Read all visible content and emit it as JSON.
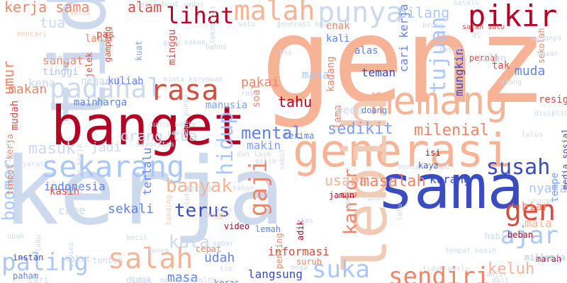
{
  "colors": {
    "background": "#ffffff",
    "deep_red": "#b40426",
    "red": "#d44e41",
    "salmon": "#ee8468",
    "peach": "#f7b396",
    "light_peach": "#f2cbb7",
    "grey_blue": "#cdd9ec",
    "light_blue": "#aac7fd",
    "blue": "#7b9ff9",
    "mid_blue": "#6282ea",
    "royal_blue": "#3b4cc0"
  },
  "words": [
    {
      "text": "genz",
      "color": "#f7b396"
    },
    {
      "text": "kerja",
      "color": "#cdd9ec"
    },
    {
      "text": "tidak",
      "color": "#cdd9ec"
    },
    {
      "text": "banget",
      "color": "#b40426"
    },
    {
      "text": "generasi",
      "color": "#f7b396"
    },
    {
      "text": "sama",
      "color": "#3b4cc0"
    },
    {
      "text": "memang",
      "color": "#f7b396"
    },
    {
      "text": "lebih",
      "color": "#f2cbb7"
    },
    {
      "text": "sekarang",
      "color": "#aac7fd"
    },
    {
      "text": "padahal",
      "color": "#cdd9ec"
    },
    {
      "text": "salah",
      "color": "#f7b396"
    },
    {
      "text": "rasa",
      "color": "#d44e41"
    },
    {
      "text": "pikir",
      "color": "#b40426"
    },
    {
      "text": "punya",
      "color": "#cdd9ec"
    },
    {
      "text": "malah",
      "color": "#f7b396"
    },
    {
      "text": "paling",
      "color": "#aac7fd"
    },
    {
      "text": "suka",
      "color": "#aac7fd"
    },
    {
      "text": "sendiri",
      "color": "#ee8468"
    },
    {
      "text": "banyak",
      "color": "#f7b396"
    },
    {
      "text": "hidup",
      "color": "#aac7fd"
    },
    {
      "text": "gaji",
      "color": "#ee8468"
    },
    {
      "text": "gen",
      "color": "#d44e41"
    },
    {
      "text": "lihat",
      "color": "#b40426"
    },
    {
      "text": "mental",
      "color": "#6282ea"
    },
    {
      "text": "masuk",
      "color": "#cdd9ec"
    },
    {
      "text": "terus",
      "color": "#3b4cc0"
    },
    {
      "text": "milenial",
      "color": "#ee8468"
    },
    {
      "text": "sedikit",
      "color": "#7b9ff9"
    },
    {
      "text": "susah",
      "color": "#3b4cc0"
    },
    {
      "text": "ajar",
      "color": "#aac7fd"
    },
    {
      "text": "kantor",
      "color": "#ee8468"
    },
    {
      "text": "usaha",
      "color": "#f7b396"
    },
    {
      "text": "masalah",
      "color": "#ee8468"
    },
    {
      "text": "tujuan",
      "color": "#aac7fd"
    },
    {
      "text": "bilang",
      "color": "#aac7fd"
    },
    {
      "text": "umur",
      "color": "#ee8468"
    },
    {
      "text": "boomer",
      "color": "#aac7fd"
    },
    {
      "text": "kerja sama",
      "color": "#ee8468"
    },
    {
      "text": "tua",
      "color": "#cdd9ec"
    },
    {
      "text": "alam",
      "color": "#d44e41"
    },
    {
      "text": "jadi",
      "color": "#cdd9ec"
    },
    {
      "text": "muda",
      "color": "#6282ea"
    },
    {
      "text": "tahu",
      "color": "#b40426"
    },
    {
      "text": "indonesia",
      "color": "#6282ea"
    },
    {
      "text": "sekali",
      "color": "#6282ea"
    },
    {
      "text": "langsung",
      "color": "#3b4cc0"
    },
    {
      "text": "kata",
      "color": "#cdd9ec"
    },
    {
      "text": "makan",
      "color": "#ee8468"
    },
    {
      "text": "orang tua",
      "color": "#cdd9ec"
    },
    {
      "text": "keluh",
      "color": "#f7b396"
    },
    {
      "text": "teman",
      "color": "#3b4cc0"
    },
    {
      "text": "pakai",
      "color": "#ee8468"
    },
    {
      "text": "informasi",
      "color": "#d44e41"
    },
    {
      "text": "udah",
      "color": "#6282ea"
    },
    {
      "text": "masa",
      "color": "#6282ea"
    },
    {
      "text": "cape",
      "color": "#cdd9ec"
    },
    {
      "text": "terlalu",
      "color": "#6282ea"
    },
    {
      "text": "nyata",
      "color": "#aac7fd"
    },
    {
      "text": "sangat",
      "color": "#ee8468"
    },
    {
      "text": "kurang",
      "color": "#3b4cc0"
    },
    {
      "text": "mungkin",
      "color": "#3b4cc0"
    },
    {
      "text": "cari kerja",
      "color": "#6282ea"
    },
    {
      "text": "biar",
      "color": "#ee8468"
    },
    {
      "text": "mana",
      "color": "#aac7fd"
    },
    {
      "text": "lama",
      "color": "#ee8468"
    },
    {
      "text": "kadang",
      "color": "#ee8468"
    },
    {
      "text": "makin",
      "color": "#7b9ff9"
    },
    {
      "text": "beda",
      "color": "#cdd9ec"
    },
    {
      "text": "mala",
      "color": "#f7b396"
    },
    {
      "text": "tempe",
      "color": "#7b9ff9"
    },
    {
      "text": "resign",
      "color": "#d44e41"
    },
    {
      "text": "kena",
      "color": "#cdd9ec"
    },
    {
      "text": "negara",
      "color": "#cdd9ec"
    },
    {
      "text": "mudah",
      "color": "#d44e41"
    },
    {
      "text": "enak",
      "color": "#ee8468"
    },
    {
      "text": "kali",
      "color": "#6282ea"
    },
    {
      "text": "alas",
      "color": "#6282ea"
    },
    {
      "text": "kasih",
      "color": "#d44e41"
    },
    {
      "text": "tinggi",
      "color": "#aac7fd"
    },
    {
      "text": "main",
      "color": "#6282ea"
    },
    {
      "text": "harga",
      "color": "#6282ea"
    },
    {
      "text": "kuliah",
      "color": "#6282ea"
    },
    {
      "text": "manusia",
      "color": "#7b9ff9"
    },
    {
      "text": "soal",
      "color": "#ee8468"
    },
    {
      "text": "pas",
      "color": "#d44e41"
    },
    {
      "text": "lahir",
      "color": "#ee8468"
    },
    {
      "text": "benar",
      "color": "#cdd9ec"
    },
    {
      "text": "minggu",
      "color": "#d44e41"
    },
    {
      "text": "jelek",
      "color": "#d44e41"
    },
    {
      "text": "gampang",
      "color": "#d44e41"
    },
    {
      "text": "kuat",
      "color": "#7b9ff9"
    },
    {
      "text": "pernah",
      "color": "#d44e41"
    },
    {
      "text": "jalan",
      "color": "#cdd9ec"
    },
    {
      "text": "tak",
      "color": "#d44e41"
    },
    {
      "text": "selalu",
      "color": "#cdd9ec"
    },
    {
      "text": "salah satu",
      "color": "#d44e41"
    },
    {
      "text": "sekolah",
      "color": "#ee8468"
    },
    {
      "text": "terima",
      "color": "#6282ea"
    },
    {
      "text": "doang",
      "color": "#6282ea"
    },
    {
      "text": "kaya",
      "color": "#3b4cc0"
    },
    {
      "text": "isi",
      "color": "#b40426"
    },
    {
      "text": "jaman",
      "color": "#b40426"
    },
    {
      "text": "lemah",
      "color": "#6282ea"
    },
    {
      "text": "adik",
      "color": "#b40426"
    },
    {
      "text": "suruh",
      "color": "#ee8468"
    },
    {
      "text": "habis",
      "color": "#cdd9ec"
    },
    {
      "text": "beban",
      "color": "#b40426"
    },
    {
      "text": "marah",
      "color": "#b40426"
    },
    {
      "text": "millenial",
      "color": "#aac7fd"
    },
    {
      "text": "tempat kerja",
      "color": "#ee8468"
    },
    {
      "text": "media sosial",
      "color": "#3b4cc0"
    },
    {
      "text": "video",
      "color": "#b40426"
    },
    {
      "text": "cepat",
      "color": "#ee8468"
    },
    {
      "text": "tonton",
      "color": "#cdd9ec"
    },
    {
      "text": "takut",
      "color": "#cdd9ec"
    },
    {
      "text": "instan",
      "color": "#3b4cc0"
    },
    {
      "text": "paham",
      "color": "#6282ea"
    },
    {
      "text": "cari",
      "color": "#cdd9ec"
    },
    {
      "text": "didik",
      "color": "#cdd9ec"
    },
    {
      "text": "keras",
      "color": "#6282ea"
    },
    {
      "text": "penting",
      "color": "#ee8468"
    },
    {
      "text": "laku",
      "color": "#cdd9ec"
    },
    {
      "text": "anggur",
      "color": "#f2cbb7"
    },
    {
      "text": "pintar",
      "color": "#cdd9ec"
    },
    {
      "text": "banding",
      "color": "#f2cbb7"
    },
    {
      "text": "sering",
      "color": "#cdd9ec"
    },
    {
      "text": "dunia kerja",
      "color": "#cdd9ec"
    },
    {
      "text": "atas",
      "color": "#cdd9ec"
    },
    {
      "text": "minta karyawan",
      "color": "#cdd9ec"
    },
    {
      "text": "hasil buat",
      "color": "#cdd9ec"
    },
    {
      "text": "sadar",
      "color": "#cdd9ec"
    },
    {
      "text": "teknologi",
      "color": "#cdd9ec"
    },
    {
      "text": "bahas",
      "color": "#cdd9ec"
    },
    {
      "text": "satu",
      "color": "#cdd9ec"
    },
    {
      "text": "rata",
      "color": "#cdd9ec"
    },
    {
      "text": "generasi belum",
      "color": "#cdd9ec"
    },
    {
      "text": "bos",
      "color": "#cdd9ec"
    },
    {
      "text": "sulit",
      "color": "#f2cbb7"
    },
    {
      "text": "mencari",
      "color": "#f2cbb7"
    },
    {
      "text": "perintah",
      "color": "#cdd9ec"
    },
    {
      "text": "syarat",
      "color": "#cdd9ec"
    },
    {
      "text": "mayoritas",
      "color": "#cdd9ec"
    },
    {
      "text": "lulus",
      "color": "#cdd9ec"
    },
    {
      "text": "dasar",
      "color": "#cdd9ec"
    },
    {
      "text": "rumah",
      "color": "#cdd9ec"
    },
    {
      "text": "sebut",
      "color": "#cdd9ec"
    },
    {
      "text": "tahan",
      "color": "#cdd9ec"
    },
    {
      "text": "kecil",
      "color": "#cdd9ec"
    },
    {
      "text": "moga",
      "color": "#cdd9ec"
    },
    {
      "text": "ubah",
      "color": "#cdd9ec"
    },
    {
      "text": "tanya",
      "color": "#cdd9ec"
    },
    {
      "text": "proses",
      "color": "#cdd9ec"
    },
    {
      "text": "anjir",
      "color": "#cdd9ec"
    },
    {
      "text": "kakak",
      "color": "#cdd9ec"
    },
    {
      "text": "guru",
      "color": "#cdd9ec"
    },
    {
      "text": "tidak punya",
      "color": "#cdd9ec"
    },
    {
      "text": "pilih",
      "color": "#cdd9ec"
    },
    {
      "text": "perlu",
      "color": "#cdd9ec"
    },
    {
      "text": "tim",
      "color": "#cdd9ec"
    },
    {
      "text": "sabar",
      "color": "#cdd9ec"
    },
    {
      "text": "sakit",
      "color": "#cdd9ec"
    },
    {
      "text": "dan lain",
      "color": "#cdd9ec"
    },
    {
      "text": "mental tempe",
      "color": "#cdd9ec"
    },
    {
      "text": "generasi z",
      "color": "#cdd9ec"
    },
    {
      "text": "tempat kasih",
      "color": "#cdd9ec"
    },
    {
      "text": "brong",
      "color": "#cdd9ec"
    },
    {
      "text": "di",
      "color": "#cdd9ec"
    },
    {
      "text": "makanya",
      "color": "#cdd9ec"
    },
    {
      "text": "ulang",
      "color": "#cdd9ec"
    },
    {
      "text": "lowong kerja",
      "color": "#cdd9ec"
    },
    {
      "text": "duit",
      "color": "#cdd9ec"
    },
    {
      "text": "nasib",
      "color": "#cdd9ec"
    },
    {
      "text": "nacan",
      "color": "#cdd9ec"
    },
    {
      "text": "lalu",
      "color": "#cdd9ec"
    },
    {
      "text": "tidak perlu",
      "color": "#cdd9ec"
    },
    {
      "text": "disiplin",
      "color": "#cdd9ec"
    },
    {
      "text": "mental health",
      "color": "#cdd9ec"
    },
    {
      "text": "lihat",
      "color": "#cdd9ec"
    }
  ]
}
